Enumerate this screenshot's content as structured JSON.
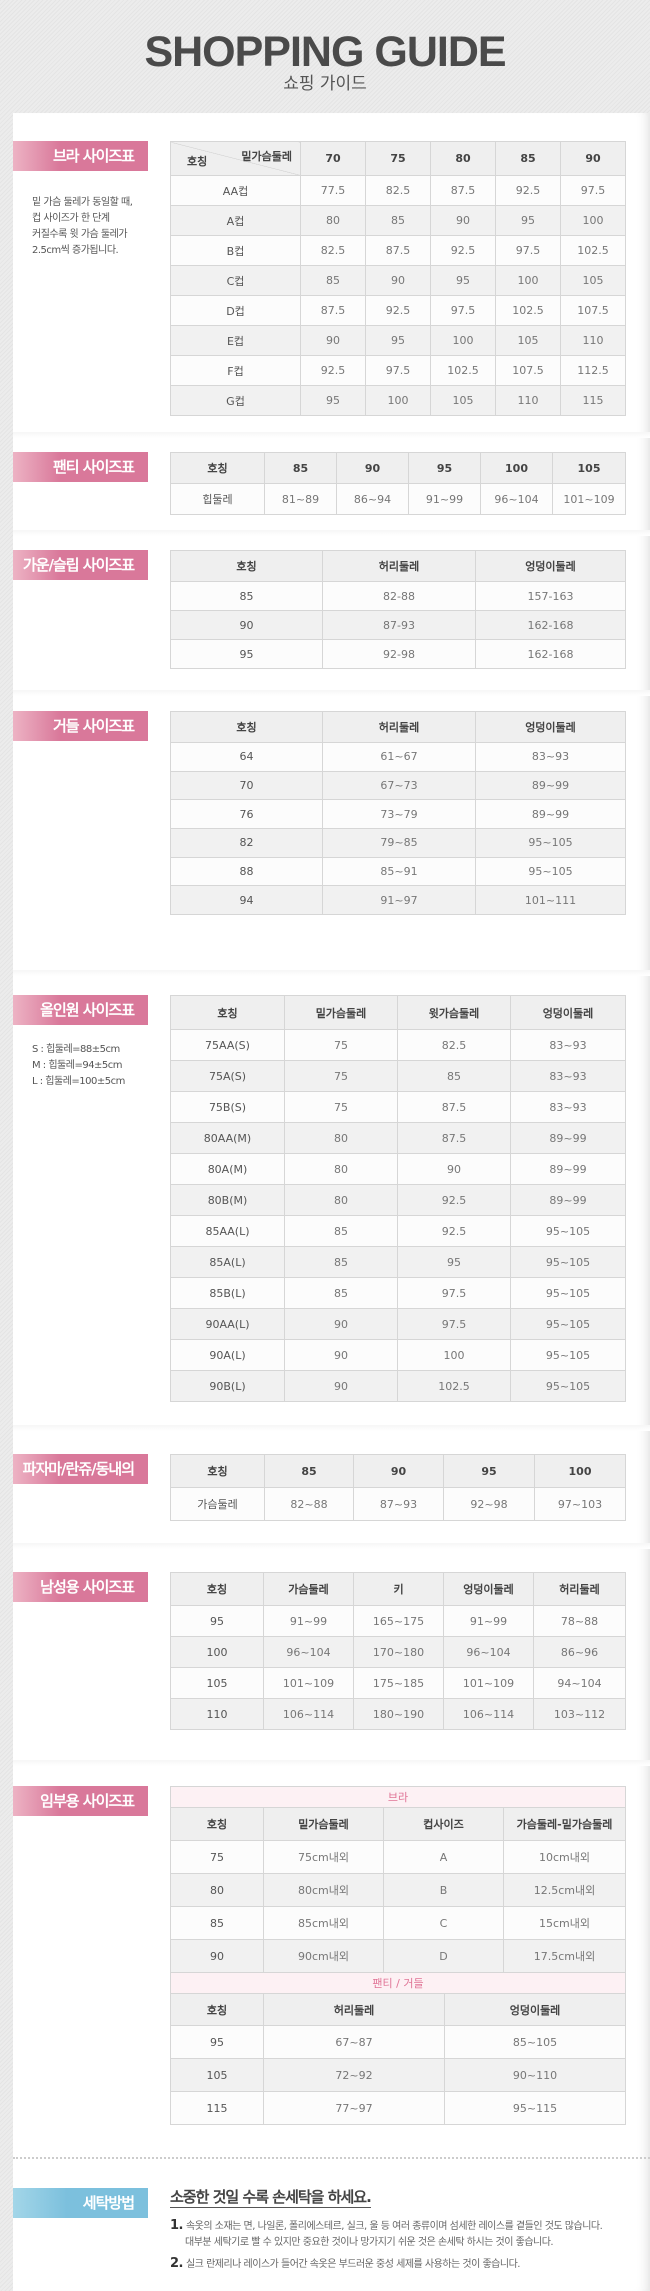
{
  "header": {
    "title": "SHOPPING GUIDE",
    "subtitle": "쇼핑 가이드"
  },
  "colors": {
    "label_pink": "#d9789a",
    "label_blue": "#7cc0dd",
    "subheader_text": "#e07496"
  },
  "sections": [
    {
      "label": "브라 사이즈표",
      "notes": [
        "밑 가슴 둘레가 동일할 때,",
        "컵 사이즈가 한 단계",
        "커질수록 윗 가슴 둘레가",
        "2.5cm씩 증가됩니다."
      ],
      "tables": [
        {
          "diag": {
            "top": "밑가슴둘레",
            "bottom": "호칭"
          },
          "headers": [
            "70",
            "75",
            "80",
            "85",
            "90"
          ],
          "rows": [
            [
              "AA컵",
              "77.5",
              "82.5",
              "87.5",
              "92.5",
              "97.5"
            ],
            [
              "A컵",
              "80",
              "85",
              "90",
              "95",
              "100"
            ],
            [
              "B컵",
              "82.5",
              "87.5",
              "92.5",
              "97.5",
              "102.5"
            ],
            [
              "C컵",
              "85",
              "90",
              "95",
              "100",
              "105"
            ],
            [
              "D컵",
              "87.5",
              "92.5",
              "97.5",
              "102.5",
              "107.5"
            ],
            [
              "E컵",
              "90",
              "95",
              "100",
              "105",
              "110"
            ],
            [
              "F컵",
              "92.5",
              "97.5",
              "102.5",
              "107.5",
              "112.5"
            ],
            [
              "G컵",
              "95",
              "100",
              "105",
              "110",
              "115"
            ]
          ]
        }
      ]
    },
    {
      "label": "팬티 사이즈표",
      "notes": [],
      "tables": [
        {
          "headers": [
            "호칭",
            "85",
            "90",
            "95",
            "100",
            "105"
          ],
          "rows": [
            [
              "힙둘레",
              "81~89",
              "86~94",
              "91~99",
              "96~104",
              "101~109"
            ]
          ]
        }
      ]
    },
    {
      "label": "가운/슬립 사이즈표",
      "notes": [],
      "tables": [
        {
          "headers": [
            "호칭",
            "허리둘레",
            "엉덩이둘레"
          ],
          "rows": [
            [
              "85",
              "82-88",
              "157-163"
            ],
            [
              "90",
              "87-93",
              "162-168"
            ],
            [
              "95",
              "92-98",
              "162-168"
            ]
          ]
        }
      ]
    },
    {
      "label": "거들 사이즈표",
      "notes": [],
      "tables": [
        {
          "headers": [
            "호칭",
            "허리둘레",
            "엉덩이둘레"
          ],
          "rows": [
            [
              "64",
              "61~67",
              "83~93"
            ],
            [
              "70",
              "67~73",
              "89~99"
            ],
            [
              "76",
              "73~79",
              "89~99"
            ],
            [
              "82",
              "79~85",
              "95~105"
            ],
            [
              "88",
              "85~91",
              "95~105"
            ],
            [
              "94",
              "91~97",
              "101~111"
            ]
          ]
        }
      ]
    },
    {
      "label": "올인원 사이즈표",
      "notes": [
        "S : 힙둘레=88±5cm",
        "M : 힙둘레=94±5cm",
        "L : 힙둘레=100±5cm"
      ],
      "tables": [
        {
          "headers": [
            "호칭",
            "밑가슴둘레",
            "윗가슴둘레",
            "엉덩이둘레"
          ],
          "rows": [
            [
              "75AA(S)",
              "75",
              "82.5",
              "83~93"
            ],
            [
              "75A(S)",
              "75",
              "85",
              "83~93"
            ],
            [
              "75B(S)",
              "75",
              "87.5",
              "83~93"
            ],
            [
              "80AA(M)",
              "80",
              "87.5",
              "89~99"
            ],
            [
              "80A(M)",
              "80",
              "90",
              "89~99"
            ],
            [
              "80B(M)",
              "80",
              "92.5",
              "89~99"
            ],
            [
              "85AA(L)",
              "85",
              "92.5",
              "95~105"
            ],
            [
              "85A(L)",
              "85",
              "95",
              "95~105"
            ],
            [
              "85B(L)",
              "85",
              "97.5",
              "95~105"
            ],
            [
              "90AA(L)",
              "90",
              "97.5",
              "95~105"
            ],
            [
              "90A(L)",
              "90",
              "100",
              "95~105"
            ],
            [
              "90B(L)",
              "90",
              "102.5",
              "95~105"
            ]
          ]
        }
      ]
    },
    {
      "label": "파자마/란쥬/동내의",
      "notes": [],
      "tables": [
        {
          "headers": [
            "호칭",
            "85",
            "90",
            "95",
            "100"
          ],
          "rows": [
            [
              "가슴둘레",
              "82~88",
              "87~93",
              "92~98",
              "97~103"
            ]
          ]
        }
      ]
    },
    {
      "label": "남성용 사이즈표",
      "notes": [],
      "tables": [
        {
          "headers": [
            "호칭",
            "가슴둘레",
            "키",
            "엉덩이둘레",
            "허리둘레"
          ],
          "rows": [
            [
              "95",
              "91~99",
              "165~175",
              "91~99",
              "78~88"
            ],
            [
              "100",
              "96~104",
              "170~180",
              "96~104",
              "86~96"
            ],
            [
              "105",
              "101~109",
              "175~185",
              "101~109",
              "94~104"
            ],
            [
              "110",
              "106~114",
              "180~190",
              "106~114",
              "103~112"
            ]
          ]
        }
      ]
    },
    {
      "label": "임부용 사이즈표",
      "notes": [],
      "tables": [
        {
          "caption": "브라",
          "headers": [
            "호칭",
            "밑가슴둘레",
            "컵사이즈",
            "가슴둘레-밑가슴둘레"
          ],
          "rows": [
            [
              "75",
              "75cm내외",
              "A",
              "10cm내외"
            ],
            [
              "80",
              "80cm내외",
              "B",
              "12.5cm내외"
            ],
            [
              "85",
              "85cm내외",
              "C",
              "15cm내외"
            ],
            [
              "90",
              "90cm내외",
              "D",
              "17.5cm내외"
            ]
          ]
        },
        {
          "caption": "팬티 / 거들",
          "headers": [
            "호칭",
            "허리둘레",
            "엉덩이둘레"
          ],
          "rows": [
            [
              "95",
              "67~87",
              "85~105"
            ],
            [
              "105",
              "72~92",
              "90~110"
            ],
            [
              "115",
              "77~97",
              "95~115"
            ]
          ]
        }
      ]
    }
  ],
  "washing": {
    "label": "세탁방법",
    "heading": "소중한 것일 수록 손세탁을 하세요.",
    "items": [
      {
        "num": "1.",
        "lines": [
          "속옷의 소재는 면, 나일론, 폴리에스테르, 실크, 울 등 여러 종류이며 섬세한 레이스를 곁들인 것도 많습니다.",
          "대부분 세탁기로 빨 수 있지만 중요한 것이나 망가지기 쉬운 것은 손세탁 하시는 것이 좋습니다."
        ]
      },
      {
        "num": "2.",
        "lines": [
          "실크 란제리나 레이스가 들어간 속옷은 부드러운 중성 세제를 사용하는 것이 좋습니다."
        ]
      }
    ]
  }
}
